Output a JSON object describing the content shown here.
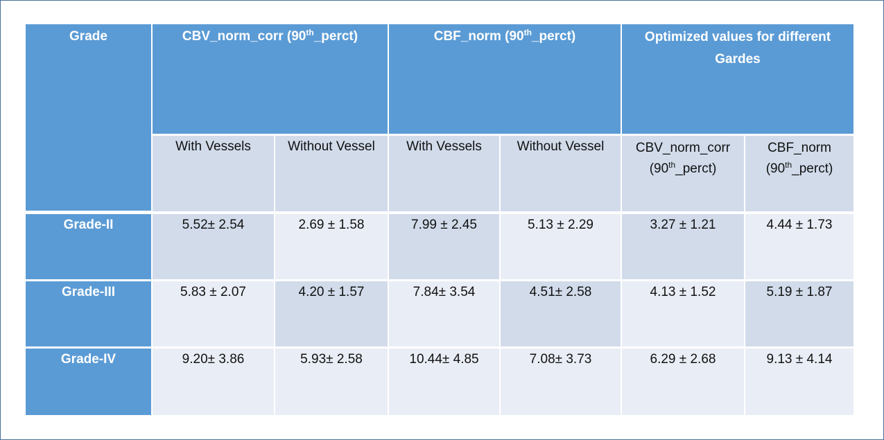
{
  "table": {
    "header": {
      "grade": "Grade",
      "cbv_group": [
        "CBV_norm_corr (90",
        "th",
        "_perct)"
      ],
      "cbf_group": [
        "CBF_norm (90",
        "th",
        "_perct)"
      ],
      "optimized_group": "Optimized values for different Gardes"
    },
    "subheader": {
      "cbv_with": "With Vessels",
      "cbv_without": "Without Vessel",
      "cbf_with": "With Vessels",
      "cbf_without": "Without Vessel",
      "opt_cbv": [
        "CBV_norm_corr",
        "(90",
        "th",
        "_perct)"
      ],
      "opt_cbf": [
        "CBF_norm",
        "(90",
        "th",
        "_perct)"
      ]
    },
    "rows": [
      {
        "grade": "Grade-II",
        "cbv_with": "5.52± 2.54",
        "cbv_without": "2.69 ± 1.58",
        "cbf_with": "7.99 ± 2.45",
        "cbf_without": "5.13 ± 2.29",
        "opt_cbv": "3.27 ± 1.21",
        "opt_cbf": "4.44 ± 1.73"
      },
      {
        "grade": "Grade-III",
        "cbv_with": "5.83 ± 2.07",
        "cbv_without": "4.20 ± 1.57",
        "cbf_with": "7.84± 3.54",
        "cbf_without": "4.51± 2.58",
        "opt_cbv": "4.13 ± 1.52",
        "opt_cbf": "5.19 ± 1.87"
      },
      {
        "grade": "Grade-IV",
        "cbv_with": "9.20± 3.86",
        "cbv_without": "5.93± 2.58",
        "cbf_with": "10.44± 4.85",
        "cbf_without": "7.08± 3.73",
        "opt_cbv": "6.29 ± 2.68",
        "opt_cbf": "9.13 ± 4.14"
      }
    ]
  },
  "colors": {
    "header_fill": "#5b9bd5",
    "band_dark": "#d1dbea",
    "band_light": "#e9edf5",
    "frame_border": "#4a6f9a"
  }
}
